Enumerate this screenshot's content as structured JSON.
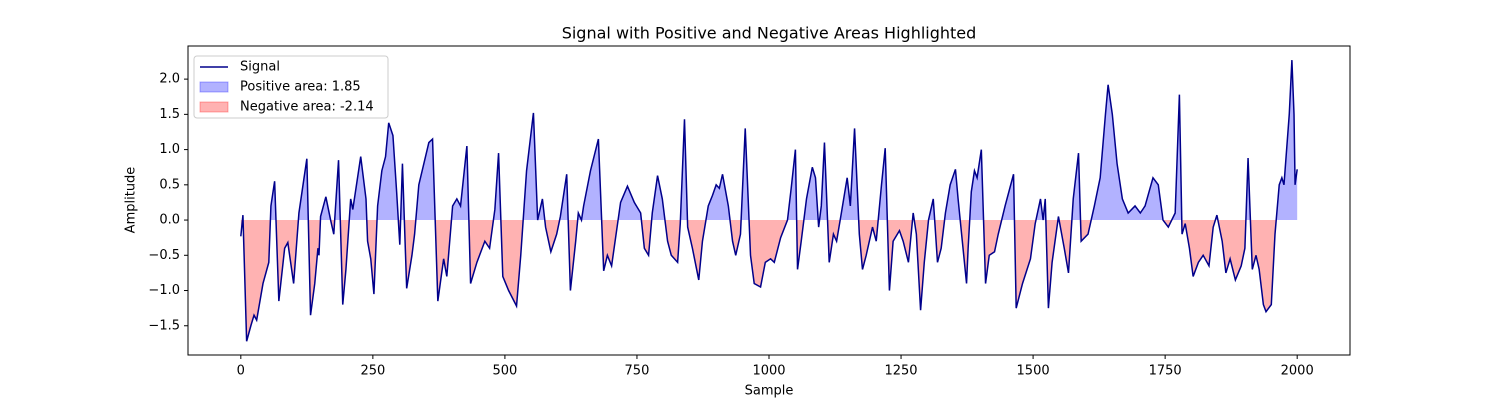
{
  "chart_data": {
    "type": "line",
    "title": "Signal with Positive and Negative Areas Highlighted",
    "xlabel": "Sample",
    "ylabel": "Amplitude",
    "xlim": [
      -100,
      2100
    ],
    "ylim": [
      -1.915,
      2.47
    ],
    "xticks": [
      0,
      250,
      500,
      750,
      1000,
      1250,
      1500,
      1750,
      2000
    ],
    "yticks": [
      {
        "value": -1.5,
        "label": "−1.5"
      },
      {
        "value": -1,
        "label": "−1.0"
      },
      {
        "value": -0.5,
        "label": "−0.5"
      },
      {
        "value": 0,
        "label": "0.0"
      },
      {
        "value": 0.5,
        "label": "0.5"
      },
      {
        "value": 1,
        "label": "1.0"
      },
      {
        "value": 1.5,
        "label": "1.5"
      },
      {
        "value": 2,
        "label": "2.0"
      }
    ],
    "legend": "upper left",
    "x": [
      0,
      4,
      11,
      19,
      25,
      30,
      42,
      53,
      57,
      64,
      72,
      83,
      89,
      100,
      110,
      125,
      132,
      140,
      146,
      148,
      151,
      161,
      170,
      176,
      185,
      193,
      199,
      208,
      212,
      227,
      237,
      240,
      246,
      252,
      259,
      267,
      274,
      280,
      288,
      295,
      301,
      306,
      314,
      324,
      329,
      337,
      356,
      363,
      373,
      384,
      390,
      401,
      409,
      416,
      428,
      435,
      447,
      462,
      471,
      481,
      488,
      496,
      507,
      522,
      530,
      541,
      554,
      562,
      568,
      571,
      577,
      587,
      598,
      605,
      617,
      624,
      634,
      639,
      645,
      649,
      662,
      677,
      687,
      694,
      702,
      719,
      732,
      745,
      757,
      764,
      772,
      779,
      789,
      798,
      808,
      815,
      827,
      832,
      840,
      846,
      855,
      867,
      874,
      885,
      893,
      900,
      906,
      912,
      923,
      931,
      937,
      946,
      955,
      965,
      972,
      984,
      993,
      1003,
      1010,
      1022,
      1035,
      1042,
      1050,
      1054,
      1061,
      1071,
      1082,
      1088,
      1094,
      1099,
      1105,
      1114,
      1122,
      1128,
      1137,
      1148,
      1154,
      1162,
      1171,
      1177,
      1184,
      1196,
      1203,
      1213,
      1220,
      1226,
      1228,
      1235,
      1247,
      1254,
      1264,
      1273,
      1279,
      1287,
      1294,
      1302,
      1311,
      1319,
      1326,
      1334,
      1343,
      1353,
      1358,
      1366,
      1374,
      1377,
      1383,
      1389,
      1394,
      1402,
      1410,
      1417,
      1427,
      1434,
      1447,
      1463,
      1468,
      1480,
      1495,
      1504,
      1514,
      1519,
      1523,
      1529,
      1536,
      1548,
      1559,
      1567,
      1576,
      1586,
      1591,
      1604,
      1616,
      1627,
      1637,
      1642,
      1650,
      1659,
      1669,
      1680,
      1693,
      1703,
      1712,
      1727,
      1737,
      1746,
      1756,
      1769,
      1777,
      1782,
      1788,
      1796,
      1803,
      1813,
      1822,
      1833,
      1841,
      1848,
      1858,
      1865,
      1873,
      1883,
      1894,
      1901,
      1907,
      1915,
      1922,
      1928,
      1936,
      1941,
      1951,
      1958,
      1966,
      1971,
      1975,
      1985,
      1990,
      1994,
      1996,
      2000
    ],
    "series": [
      {
        "name": "Signal",
        "color": "#00008b",
        "values": [
          -0.23,
          0.07,
          -1.72,
          -1.5,
          -1.35,
          -1.42,
          -0.9,
          -0.6,
          0.2,
          0.55,
          -1.15,
          -0.4,
          -0.32,
          -0.9,
          0.1,
          0.87,
          -1.35,
          -0.9,
          -0.4,
          -0.5,
          0.05,
          0.33,
          0.0,
          -0.2,
          0.85,
          -1.2,
          -0.7,
          0.3,
          0.15,
          0.9,
          0.3,
          -0.3,
          -0.55,
          -1.05,
          0.2,
          0.7,
          0.9,
          1.38,
          1.2,
          0.4,
          -0.35,
          0.8,
          -0.97,
          -0.5,
          -0.2,
          0.5,
          1.1,
          1.15,
          -1.15,
          -0.55,
          -0.8,
          0.2,
          0.3,
          0.2,
          1.05,
          -0.9,
          -0.6,
          -0.3,
          -0.4,
          0.15,
          0.95,
          -0.8,
          -1.0,
          -1.22,
          -0.5,
          0.7,
          1.52,
          0.0,
          0.2,
          0.3,
          -0.1,
          -0.45,
          -0.2,
          0.05,
          0.65,
          -1.0,
          -0.3,
          0.1,
          0.0,
          0.2,
          0.7,
          1.15,
          -0.72,
          -0.5,
          -0.65,
          0.25,
          0.48,
          0.25,
          0.1,
          -0.4,
          -0.5,
          0.1,
          0.63,
          0.3,
          -0.3,
          -0.5,
          -0.6,
          -0.05,
          1.43,
          -0.1,
          -0.4,
          -0.85,
          -0.3,
          0.2,
          0.35,
          0.5,
          0.45,
          0.65,
          0.2,
          -0.3,
          -0.5,
          -0.2,
          1.3,
          -0.5,
          -0.9,
          -0.95,
          -0.6,
          -0.55,
          -0.6,
          -0.25,
          0.0,
          0.45,
          1.0,
          -0.7,
          -0.3,
          0.3,
          0.75,
          0.6,
          -0.1,
          0.2,
          1.1,
          -0.6,
          -0.2,
          -0.3,
          0.1,
          0.6,
          0.2,
          1.3,
          -0.2,
          -0.7,
          -0.5,
          -0.1,
          -0.3,
          0.5,
          1.02,
          -0.5,
          -1.0,
          -0.3,
          -0.15,
          -0.3,
          -0.6,
          0.1,
          -0.2,
          -1.28,
          -0.6,
          0.0,
          0.3,
          -0.6,
          -0.4,
          0.1,
          0.5,
          0.72,
          0.3,
          -0.3,
          -0.9,
          -0.4,
          0.4,
          0.7,
          0.6,
          1.0,
          -0.9,
          -0.5,
          -0.45,
          -0.2,
          0.2,
          0.65,
          -1.25,
          -0.9,
          -0.55,
          -0.05,
          0.3,
          0.0,
          0.3,
          -1.25,
          -0.6,
          0.05,
          -0.4,
          -0.75,
          0.3,
          0.95,
          -0.3,
          -0.2,
          0.2,
          0.6,
          1.5,
          1.92,
          1.5,
          0.8,
          0.3,
          0.1,
          0.2,
          0.1,
          0.2,
          0.6,
          0.5,
          0.0,
          -0.1,
          0.1,
          1.78,
          -0.2,
          -0.05,
          -0.4,
          -0.8,
          -0.6,
          -0.5,
          -0.65,
          -0.1,
          0.07,
          -0.3,
          -0.75,
          -0.55,
          -0.85,
          -0.65,
          -0.4,
          0.88,
          -0.7,
          -0.5,
          -0.7,
          -1.2,
          -1.3,
          -1.2,
          -0.2,
          0.5,
          0.6,
          0.5,
          1.5,
          2.27,
          1.5,
          0.5,
          0.72
        ]
      }
    ],
    "fills": [
      {
        "name": "Positive area: 1.85",
        "color": "#0000ff",
        "side": "positive"
      },
      {
        "name": "Negative area: -2.14",
        "color": "#ff0000",
        "side": "negative"
      }
    ]
  }
}
